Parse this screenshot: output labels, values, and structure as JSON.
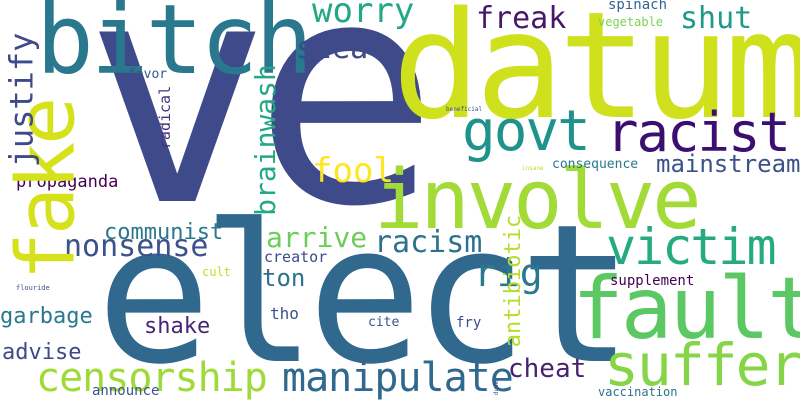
{
  "words": [
    {
      "id": "ve",
      "text": "ve",
      "color": "#3e4a89"
    },
    {
      "id": "datum",
      "text": "datum",
      "color": "#cfe11c"
    },
    {
      "id": "elect",
      "text": "elect",
      "color": "#31688e"
    },
    {
      "id": "bitch",
      "text": "bitch",
      "color": "#2a788e"
    },
    {
      "id": "fake",
      "text": "fake",
      "color": "#d5e21a"
    },
    {
      "id": "involve",
      "text": "involve",
      "color": "#a2da37"
    },
    {
      "id": "govt",
      "text": "govt",
      "color": "#20928c"
    },
    {
      "id": "racist",
      "text": "racist",
      "color": "#3b0f70"
    },
    {
      "id": "fault",
      "text": "fault",
      "color": "#5cc863"
    },
    {
      "id": "victim",
      "text": "victim",
      "color": "#25ab82"
    },
    {
      "id": "suffer",
      "text": "suffer",
      "color": "#86d549"
    },
    {
      "id": "censorship",
      "text": "censorship",
      "color": "#a0da39"
    },
    {
      "id": "manipulate",
      "text": "manipulate",
      "color": "#31688e"
    },
    {
      "id": "nonsense",
      "text": "nonsense",
      "color": "#3b528b"
    },
    {
      "id": "worry",
      "text": "worry",
      "color": "#22a884"
    },
    {
      "id": "steal",
      "text": "steal",
      "color": "#3e4a89"
    },
    {
      "id": "freak",
      "text": "freak",
      "color": "#481769"
    },
    {
      "id": "shut",
      "text": "shut",
      "color": "#1f9a8a"
    },
    {
      "id": "justify",
      "text": "justify",
      "color": "#3e4a89"
    },
    {
      "id": "brainwash",
      "text": "brainwash",
      "color": "#22a884"
    },
    {
      "id": "fool",
      "text": "fool",
      "color": "#fde725"
    },
    {
      "id": "mainstream",
      "text": "mainstream",
      "color": "#3b528b"
    },
    {
      "id": "communist",
      "text": "communist",
      "color": "#2a788e"
    },
    {
      "id": "arrive",
      "text": "arrive",
      "color": "#6ccd5a"
    },
    {
      "id": "racism",
      "text": "racism",
      "color": "#2c728e"
    },
    {
      "id": "propaganda",
      "text": "propaganda",
      "color": "#440154"
    },
    {
      "id": "radical",
      "text": "radical",
      "color": "#46327e"
    },
    {
      "id": "favor",
      "text": "favor",
      "color": "#3b528b"
    },
    {
      "id": "spinach",
      "text": "spinach",
      "color": "#33638d"
    },
    {
      "id": "vegetable",
      "text": "vegetable",
      "color": "#7ad151"
    },
    {
      "id": "consequence",
      "text": "consequence",
      "color": "#2a788e"
    },
    {
      "id": "beneficial",
      "text": "beneficial",
      "color": "#3e4a89"
    },
    {
      "id": "insane",
      "text": "insane",
      "color": "#bddf26"
    },
    {
      "id": "creator",
      "text": "creator",
      "color": "#3e4a89"
    },
    {
      "id": "ton",
      "text": "ton",
      "color": "#2c728e"
    },
    {
      "id": "cult",
      "text": "cult",
      "color": "#bddf26"
    },
    {
      "id": "rig",
      "text": "rig",
      "color": "#2a788e"
    },
    {
      "id": "antibiotic",
      "text": "antibiotic",
      "color": "#b5de2b"
    },
    {
      "id": "garbage",
      "text": "garbage",
      "color": "#2a788e"
    },
    {
      "id": "shake",
      "text": "shake",
      "color": "#482475"
    },
    {
      "id": "advise",
      "text": "advise",
      "color": "#3e4a89"
    },
    {
      "id": "tho",
      "text": "tho",
      "color": "#3b528b"
    },
    {
      "id": "cite",
      "text": "cite",
      "color": "#3b528b"
    },
    {
      "id": "fry",
      "text": "fry",
      "color": "#3e4a89"
    },
    {
      "id": "supplement",
      "text": "supplement",
      "color": "#440154"
    },
    {
      "id": "cheat",
      "text": "cheat",
      "color": "#482173"
    },
    {
      "id": "flouride",
      "text": "flouride",
      "color": "#3b528b"
    },
    {
      "id": "announce",
      "text": "announce",
      "color": "#3b528b"
    },
    {
      "id": "dude",
      "text": "dude",
      "color": "#3e4a89"
    },
    {
      "id": "vaccination",
      "text": "vaccination",
      "color": "#2c728e"
    }
  ]
}
